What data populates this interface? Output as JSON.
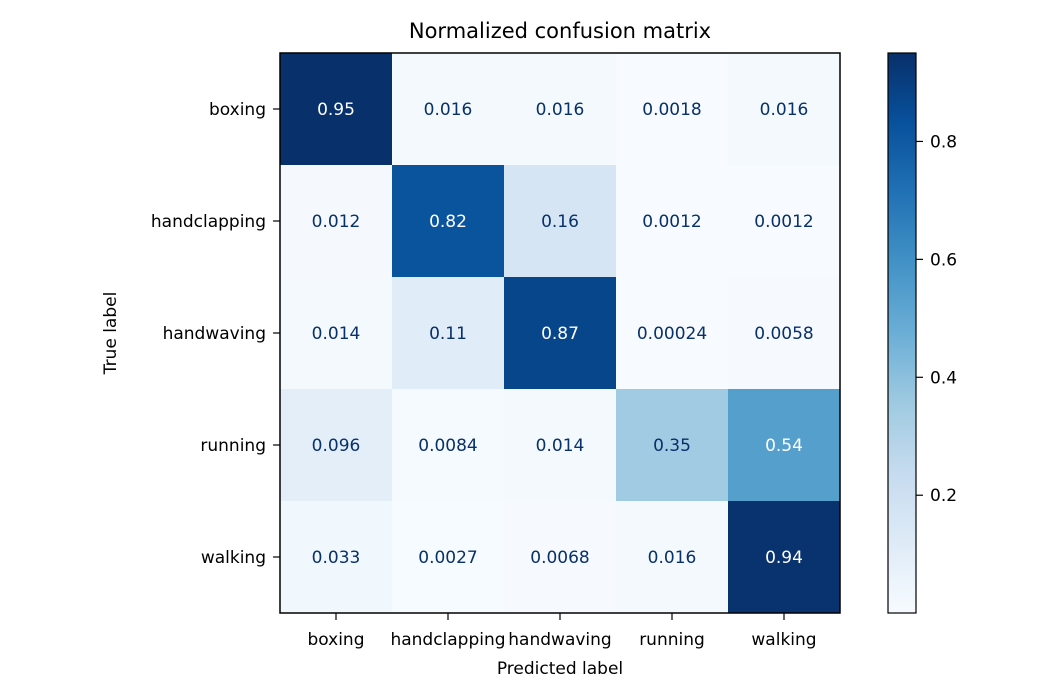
{
  "chart_data": {
    "type": "heatmap",
    "title": "Normalized confusion matrix",
    "xlabel": "Predicted label",
    "ylabel": "True label",
    "x_categories": [
      "boxing",
      "handclapping",
      "handwaving",
      "running",
      "walking"
    ],
    "y_categories": [
      "boxing",
      "handclapping",
      "handwaving",
      "running",
      "walking"
    ],
    "values": [
      [
        0.95,
        0.016,
        0.016,
        0.0018,
        0.016
      ],
      [
        0.012,
        0.82,
        0.16,
        0.0012,
        0.0012
      ],
      [
        0.014,
        0.11,
        0.87,
        0.00024,
        0.0058
      ],
      [
        0.096,
        0.0084,
        0.014,
        0.35,
        0.54
      ],
      [
        0.033,
        0.0027,
        0.0068,
        0.016,
        0.94
      ]
    ],
    "cell_labels": [
      [
        "0.95",
        "0.016",
        "0.016",
        "0.0018",
        "0.016"
      ],
      [
        "0.012",
        "0.82",
        "0.16",
        "0.0012",
        "0.0012"
      ],
      [
        "0.014",
        "0.11",
        "0.87",
        "0.00024",
        "0.0058"
      ],
      [
        "0.096",
        "0.0084",
        "0.014",
        "0.35",
        "0.54"
      ],
      [
        "0.033",
        "0.0027",
        "0.0068",
        "0.016",
        "0.94"
      ]
    ],
    "colormap": "Blues",
    "colorbar": {
      "min": 0.00024,
      "max": 0.95,
      "ticks": [
        0.2,
        0.4,
        0.6,
        0.8
      ],
      "tick_labels": [
        "0.2",
        "0.4",
        "0.6",
        "0.8"
      ]
    },
    "grid": false
  }
}
